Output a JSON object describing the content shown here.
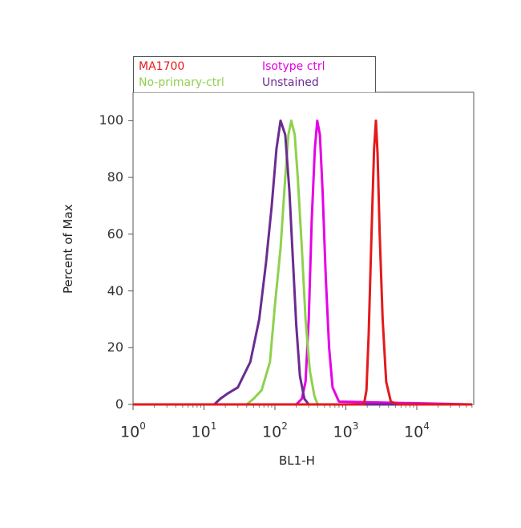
{
  "chart_data": {
    "type": "line",
    "title": "",
    "xlabel": "BL1-H",
    "ylabel": "Percent of Max",
    "x_scale": "log",
    "xlim": [
      1,
      60000
    ],
    "ylim": [
      0,
      110
    ],
    "yticks": [
      "0",
      "20",
      "40",
      "60",
      "80",
      "100"
    ],
    "xticks": [
      {
        "base": "10",
        "exp": "0"
      },
      {
        "base": "10",
        "exp": "1"
      },
      {
        "base": "10",
        "exp": "2"
      },
      {
        "base": "10",
        "exp": "3"
      },
      {
        "base": "10",
        "exp": "4"
      }
    ],
    "legend_placement": "top",
    "series": [
      {
        "name": "MA1700",
        "color": "#e31a1c",
        "points": [
          [
            1,
            0
          ],
          [
            1800,
            0
          ],
          [
            1950,
            5
          ],
          [
            2100,
            25
          ],
          [
            2300,
            60
          ],
          [
            2500,
            90
          ],
          [
            2650,
            100
          ],
          [
            2800,
            88
          ],
          [
            3000,
            60
          ],
          [
            3300,
            30
          ],
          [
            3700,
            8
          ],
          [
            4300,
            1
          ],
          [
            5500,
            0
          ],
          [
            60000,
            0
          ]
        ]
      },
      {
        "name": "Isotype ctrl",
        "color": "#e600e6",
        "points": [
          [
            1,
            0
          ],
          [
            200,
            0
          ],
          [
            240,
            2
          ],
          [
            270,
            8
          ],
          [
            300,
            30
          ],
          [
            330,
            65
          ],
          [
            365,
            90
          ],
          [
            395,
            100
          ],
          [
            430,
            95
          ],
          [
            470,
            75
          ],
          [
            520,
            45
          ],
          [
            580,
            20
          ],
          [
            650,
            6
          ],
          [
            800,
            1
          ],
          [
            60000,
            0
          ]
        ]
      },
      {
        "name": "No-primary-ctrl",
        "color": "#8fd14f",
        "points": [
          [
            1,
            0
          ],
          [
            40,
            0
          ],
          [
            50,
            2
          ],
          [
            65,
            5
          ],
          [
            85,
            15
          ],
          [
            100,
            35
          ],
          [
            120,
            55
          ],
          [
            140,
            80
          ],
          [
            155,
            95
          ],
          [
            170,
            100
          ],
          [
            190,
            95
          ],
          [
            210,
            80
          ],
          [
            240,
            55
          ],
          [
            270,
            30
          ],
          [
            310,
            12
          ],
          [
            360,
            3
          ],
          [
            400,
            0
          ],
          [
            60000,
            0
          ]
        ]
      },
      {
        "name": "Unstained",
        "color": "#6a2c91",
        "points": [
          [
            1,
            0
          ],
          [
            14,
            0
          ],
          [
            17,
            2
          ],
          [
            22,
            4
          ],
          [
            30,
            6
          ],
          [
            45,
            15
          ],
          [
            60,
            30
          ],
          [
            75,
            50
          ],
          [
            90,
            70
          ],
          [
            105,
            90
          ],
          [
            120,
            100
          ],
          [
            140,
            95
          ],
          [
            160,
            75
          ],
          [
            180,
            50
          ],
          [
            200,
            28
          ],
          [
            225,
            10
          ],
          [
            260,
            2
          ],
          [
            300,
            0
          ],
          [
            60000,
            0
          ]
        ]
      }
    ]
  }
}
